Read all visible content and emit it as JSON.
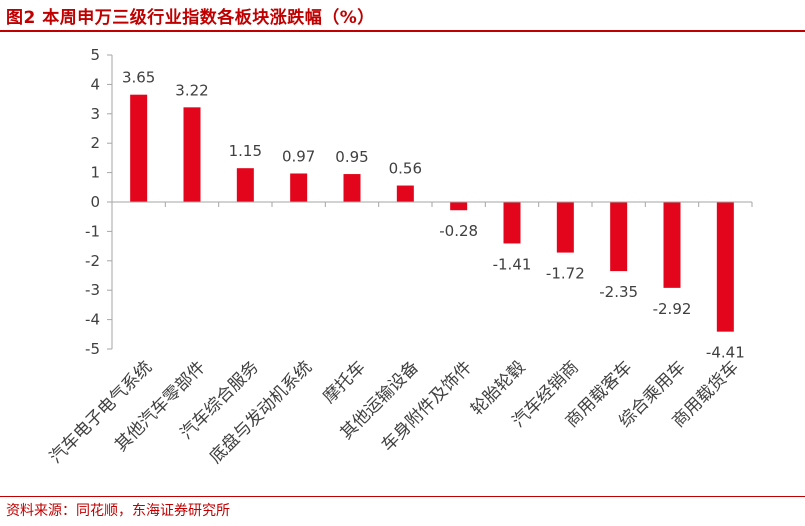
{
  "header": {
    "title": "图2 本周申万三级行业指数各板块涨跌幅（%）"
  },
  "footer": {
    "source": "资料来源：同花顺，东海证券研究所"
  },
  "colors": {
    "bar": "#e3051b",
    "accent": "#c00000",
    "axis": "#a6a6a6",
    "text": "#404040"
  },
  "chart_data": {
    "type": "bar",
    "categories": [
      "汽车电子电气系统",
      "其他汽车零部件",
      "汽车综合服务",
      "底盘与发动机系统",
      "摩托车",
      "其他运输设备",
      "车身附件及饰件",
      "轮胎轮毂",
      "汽车经销商",
      "商用载客车",
      "综合乘用车",
      "商用载货车"
    ],
    "values": [
      3.65,
      3.22,
      1.15,
      0.97,
      0.95,
      0.56,
      -0.28,
      -1.41,
      -1.72,
      -2.35,
      -2.92,
      -4.41
    ],
    "data_labels": [
      "3.65",
      "3.22",
      "1.15",
      "0.97",
      "0.95",
      "0.56",
      "-0.28",
      "-1.41",
      "-1.72",
      "-2.35",
      "-2.92",
      "-4.41"
    ],
    "yticks": [
      5,
      4,
      3,
      2,
      1,
      0,
      -1,
      -2,
      -3,
      -4,
      -5
    ],
    "ytick_labels": [
      "5",
      "4",
      "3",
      "2",
      "1",
      "0",
      "-1",
      "-2",
      "-3",
      "-4",
      "-5"
    ],
    "ylim": [
      -5,
      5
    ],
    "grid": false,
    "legend": "none"
  }
}
